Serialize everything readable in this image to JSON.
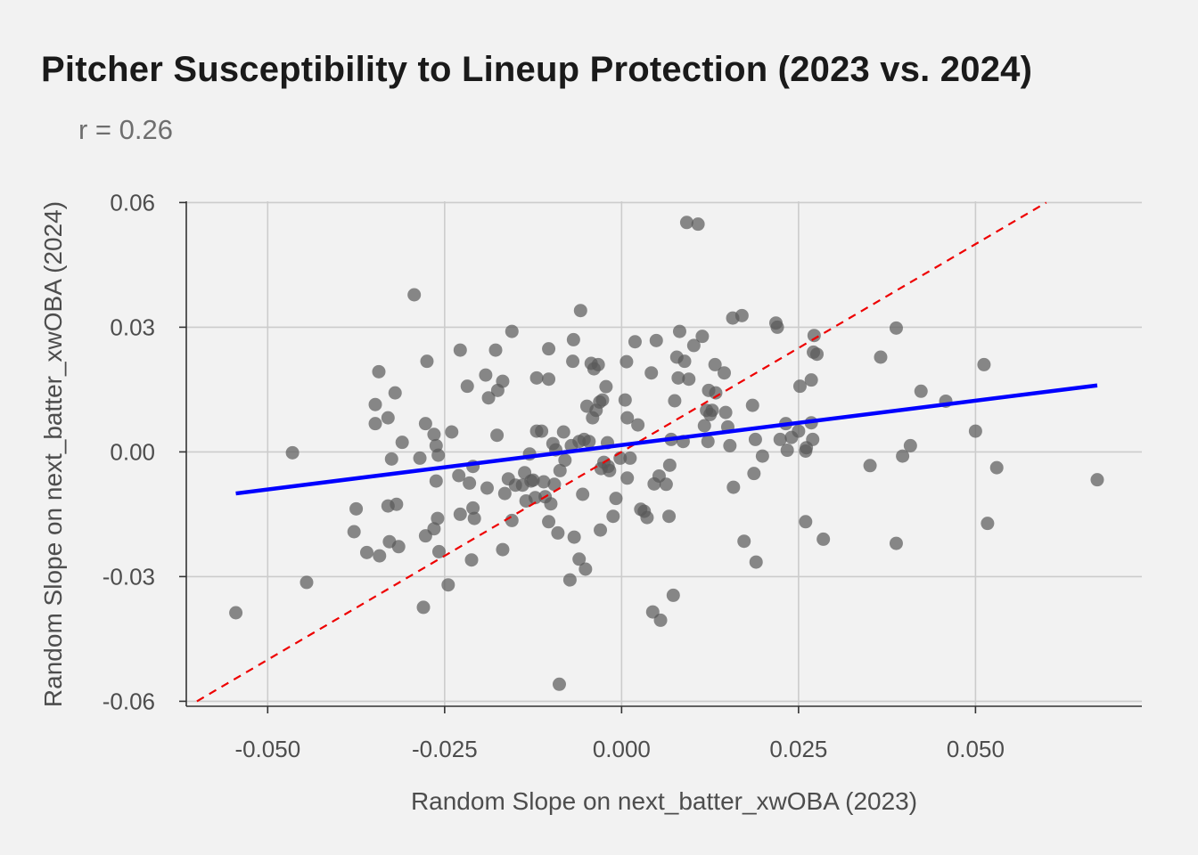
{
  "chart_data": {
    "type": "scatter",
    "title": "Pitcher Susceptibility to Lineup Protection (2023 vs. 2024)",
    "subtitle": "r = 0.26",
    "xlabel": "Random Slope on next_batter_xwOBA (2023)",
    "ylabel": "Random Slope on next_batter_xwOBA (2024)",
    "xlim": [
      -0.0615,
      0.0735
    ],
    "ylim": [
      -0.0612,
      0.0603
    ],
    "xticks": [
      -0.05,
      -0.025,
      0.0,
      0.025,
      0.05
    ],
    "xtick_labels": [
      "-0.050",
      "-0.025",
      "0.000",
      "0.025",
      "0.050"
    ],
    "yticks": [
      -0.06,
      -0.03,
      0.0,
      0.03,
      0.06
    ],
    "ytick_labels": [
      "-0.06",
      "-0.03",
      "0.00",
      "0.03",
      "0.06"
    ],
    "grid": true,
    "colors": {
      "points": "#595959",
      "fit_line": "#0000ff",
      "identity_line": "#ee0000",
      "grid": "#cccccc",
      "background": "#f2f2f2"
    },
    "fit_line": {
      "x": [
        -0.0545,
        0.0672
      ],
      "y": [
        -0.01,
        0.016
      ]
    },
    "identity_line": {
      "x": [
        -0.06,
        0.06
      ],
      "y": [
        -0.06,
        0.06
      ]
    },
    "points": [
      [
        -0.0545,
        -0.0387
      ],
      [
        -0.0465,
        -0.0002
      ],
      [
        -0.0445,
        -0.0314
      ],
      [
        -0.0378,
        -0.0192
      ],
      [
        -0.0375,
        -0.0137
      ],
      [
        -0.036,
        -0.0242
      ],
      [
        -0.0342,
        -0.025
      ],
      [
        -0.0348,
        0.0114
      ],
      [
        -0.0348,
        0.0068
      ],
      [
        -0.0343,
        0.0193
      ],
      [
        -0.033,
        0.0082
      ],
      [
        -0.033,
        -0.013
      ],
      [
        -0.0328,
        -0.0216
      ],
      [
        -0.0325,
        -0.0017
      ],
      [
        -0.032,
        0.0142
      ],
      [
        -0.0318,
        -0.0126
      ],
      [
        -0.0315,
        -0.0228
      ],
      [
        -0.031,
        0.0023
      ],
      [
        -0.0293,
        0.0378
      ],
      [
        -0.0285,
        -0.0015
      ],
      [
        -0.028,
        -0.0374
      ],
      [
        -0.0277,
        0.0068
      ],
      [
        -0.0277,
        -0.0202
      ],
      [
        -0.0275,
        0.0218
      ],
      [
        -0.0265,
        0.0042
      ],
      [
        -0.0265,
        -0.0185
      ],
      [
        -0.0262,
        0.0015
      ],
      [
        -0.0262,
        -0.007
      ],
      [
        -0.026,
        -0.016
      ],
      [
        -0.0259,
        -0.0008
      ],
      [
        -0.0258,
        -0.024
      ],
      [
        -0.0245,
        -0.032
      ],
      [
        -0.024,
        0.0048
      ],
      [
        -0.023,
        -0.0057
      ],
      [
        -0.0228,
        0.0245
      ],
      [
        -0.0228,
        -0.015
      ],
      [
        -0.0218,
        0.0158
      ],
      [
        -0.0215,
        -0.0075
      ],
      [
        -0.0212,
        -0.026
      ],
      [
        -0.021,
        -0.0035
      ],
      [
        -0.021,
        -0.0135
      ],
      [
        -0.0208,
        -0.016
      ],
      [
        -0.0192,
        0.0185
      ],
      [
        -0.019,
        -0.0087
      ],
      [
        -0.0188,
        0.013
      ],
      [
        -0.0178,
        0.0245
      ],
      [
        -0.0176,
        0.004
      ],
      [
        -0.0175,
        0.0148
      ],
      [
        -0.0168,
        0.017
      ],
      [
        -0.0168,
        -0.0235
      ],
      [
        -0.0165,
        -0.01
      ],
      [
        -0.016,
        -0.0065
      ],
      [
        -0.0155,
        0.029
      ],
      [
        -0.0155,
        -0.0165
      ],
      [
        -0.015,
        -0.008
      ],
      [
        -0.014,
        -0.008
      ],
      [
        -0.0137,
        -0.005
      ],
      [
        -0.0135,
        -0.0118
      ],
      [
        -0.013,
        -0.0005
      ],
      [
        -0.0128,
        -0.007
      ],
      [
        -0.0125,
        -0.0068
      ],
      [
        -0.0122,
        -0.011
      ],
      [
        -0.012,
        0.0178
      ],
      [
        -0.012,
        0.005
      ],
      [
        -0.0113,
        0.005
      ],
      [
        -0.011,
        -0.0072
      ],
      [
        -0.0108,
        -0.0108
      ],
      [
        -0.0103,
        0.0248
      ],
      [
        -0.0103,
        0.0175
      ],
      [
        -0.0103,
        -0.0168
      ],
      [
        -0.01,
        -0.0125
      ],
      [
        -0.0097,
        0.002
      ],
      [
        -0.0095,
        -0.0078
      ],
      [
        -0.0093,
        0.0005
      ],
      [
        -0.009,
        -0.0195
      ],
      [
        -0.0088,
        -0.0559
      ],
      [
        -0.0087,
        -0.0045
      ],
      [
        -0.0082,
        0.0048
      ],
      [
        -0.008,
        -0.002
      ],
      [
        -0.0073,
        -0.0308
      ],
      [
        -0.0071,
        0.0015
      ],
      [
        -0.0069,
        0.0218
      ],
      [
        -0.0068,
        0.027
      ],
      [
        -0.0067,
        -0.0205
      ],
      [
        -0.006,
        0.0025
      ],
      [
        -0.006,
        -0.0258
      ],
      [
        -0.0058,
        0.034
      ],
      [
        -0.0055,
        -0.0102
      ],
      [
        -0.0053,
        0.003
      ],
      [
        -0.0051,
        -0.0282
      ],
      [
        -0.0049,
        0.011
      ],
      [
        -0.0046,
        0.0025
      ],
      [
        -0.0043,
        0.0213
      ],
      [
        -0.0041,
        0.0082
      ],
      [
        -0.0039,
        0.02
      ],
      [
        -0.0036,
        0.01
      ],
      [
        -0.0033,
        0.021
      ],
      [
        -0.0031,
        0.012
      ],
      [
        -0.003,
        -0.0188
      ],
      [
        -0.0029,
        -0.004
      ],
      [
        -0.0027,
        0.0125
      ],
      [
        -0.0025,
        -0.0025
      ],
      [
        -0.0022,
        0.0157
      ],
      [
        -0.002,
        0.0022
      ],
      [
        -0.0019,
        -0.0035
      ],
      [
        -0.0017,
        -0.0045
      ],
      [
        -0.0012,
        -0.0155
      ],
      [
        -0.0008,
        -0.0112
      ],
      [
        -0.0002,
        -0.0015
      ],
      [
        0.0005,
        0.0125
      ],
      [
        0.0007,
        0.0217
      ],
      [
        0.0008,
        0.0082
      ],
      [
        0.0008,
        -0.0063
      ],
      [
        0.0012,
        -0.0015
      ],
      [
        0.0019,
        0.0265
      ],
      [
        0.0023,
        0.0065
      ],
      [
        0.0027,
        -0.0138
      ],
      [
        0.0032,
        -0.0143
      ],
      [
        0.0036,
        -0.0158
      ],
      [
        0.0042,
        0.019
      ],
      [
        0.0044,
        -0.0385
      ],
      [
        0.0046,
        -0.0077
      ],
      [
        0.0049,
        0.0268
      ],
      [
        0.0053,
        -0.0058
      ],
      [
        0.0055,
        -0.0405
      ],
      [
        0.0063,
        -0.0078
      ],
      [
        0.0067,
        -0.0155
      ],
      [
        0.0068,
        -0.0032
      ],
      [
        0.007,
        0.003
      ],
      [
        0.0073,
        -0.0345
      ],
      [
        0.0075,
        0.0123
      ],
      [
        0.0078,
        0.0228
      ],
      [
        0.008,
        0.0178
      ],
      [
        0.0082,
        0.029
      ],
      [
        0.0087,
        0.0025
      ],
      [
        0.0089,
        0.0218
      ],
      [
        0.0092,
        0.0552
      ],
      [
        0.0095,
        0.0175
      ],
      [
        0.0102,
        0.0256
      ],
      [
        0.0108,
        0.0548
      ],
      [
        0.0114,
        0.0278
      ],
      [
        0.0117,
        0.0063
      ],
      [
        0.012,
        0.01
      ],
      [
        0.0122,
        0.0025
      ],
      [
        0.0123,
        0.0148
      ],
      [
        0.0125,
        0.009
      ],
      [
        0.0128,
        0.01
      ],
      [
        0.0132,
        0.021
      ],
      [
        0.0133,
        0.0142
      ],
      [
        0.0145,
        0.019
      ],
      [
        0.0147,
        0.0095
      ],
      [
        0.015,
        0.006
      ],
      [
        0.0153,
        0.0015
      ],
      [
        0.0157,
        0.0322
      ],
      [
        0.0158,
        -0.0085
      ],
      [
        0.017,
        0.0328
      ],
      [
        0.0173,
        -0.0215
      ],
      [
        0.0185,
        0.0112
      ],
      [
        0.0187,
        -0.0052
      ],
      [
        0.0189,
        0.003
      ],
      [
        0.019,
        -0.0265
      ],
      [
        0.0199,
        -0.001
      ],
      [
        0.0218,
        0.031
      ],
      [
        0.022,
        0.03
      ],
      [
        0.0224,
        0.003
      ],
      [
        0.0232,
        0.0068
      ],
      [
        0.0234,
        0.0004
      ],
      [
        0.024,
        0.0035
      ],
      [
        0.025,
        0.005
      ],
      [
        0.0252,
        0.0158
      ],
      [
        0.026,
        0.0002
      ],
      [
        0.026,
        -0.0168
      ],
      [
        0.0261,
        0.001
      ],
      [
        0.0268,
        0.007
      ],
      [
        0.0268,
        0.0173
      ],
      [
        0.027,
        0.003
      ],
      [
        0.0271,
        0.024
      ],
      [
        0.0272,
        0.028
      ],
      [
        0.0276,
        0.0235
      ],
      [
        0.0285,
        -0.021
      ],
      [
        0.0351,
        -0.0033
      ],
      [
        0.0366,
        0.0228
      ],
      [
        0.0388,
        -0.022
      ],
      [
        0.0388,
        0.0298
      ],
      [
        0.0397,
        -0.001
      ],
      [
        0.0408,
        0.0015
      ],
      [
        0.0423,
        0.0146
      ],
      [
        0.0458,
        0.0122
      ],
      [
        0.05,
        0.005
      ],
      [
        0.0512,
        0.021
      ],
      [
        0.0517,
        -0.0172
      ],
      [
        0.053,
        -0.0038
      ],
      [
        0.0672,
        -0.0067
      ]
    ]
  }
}
